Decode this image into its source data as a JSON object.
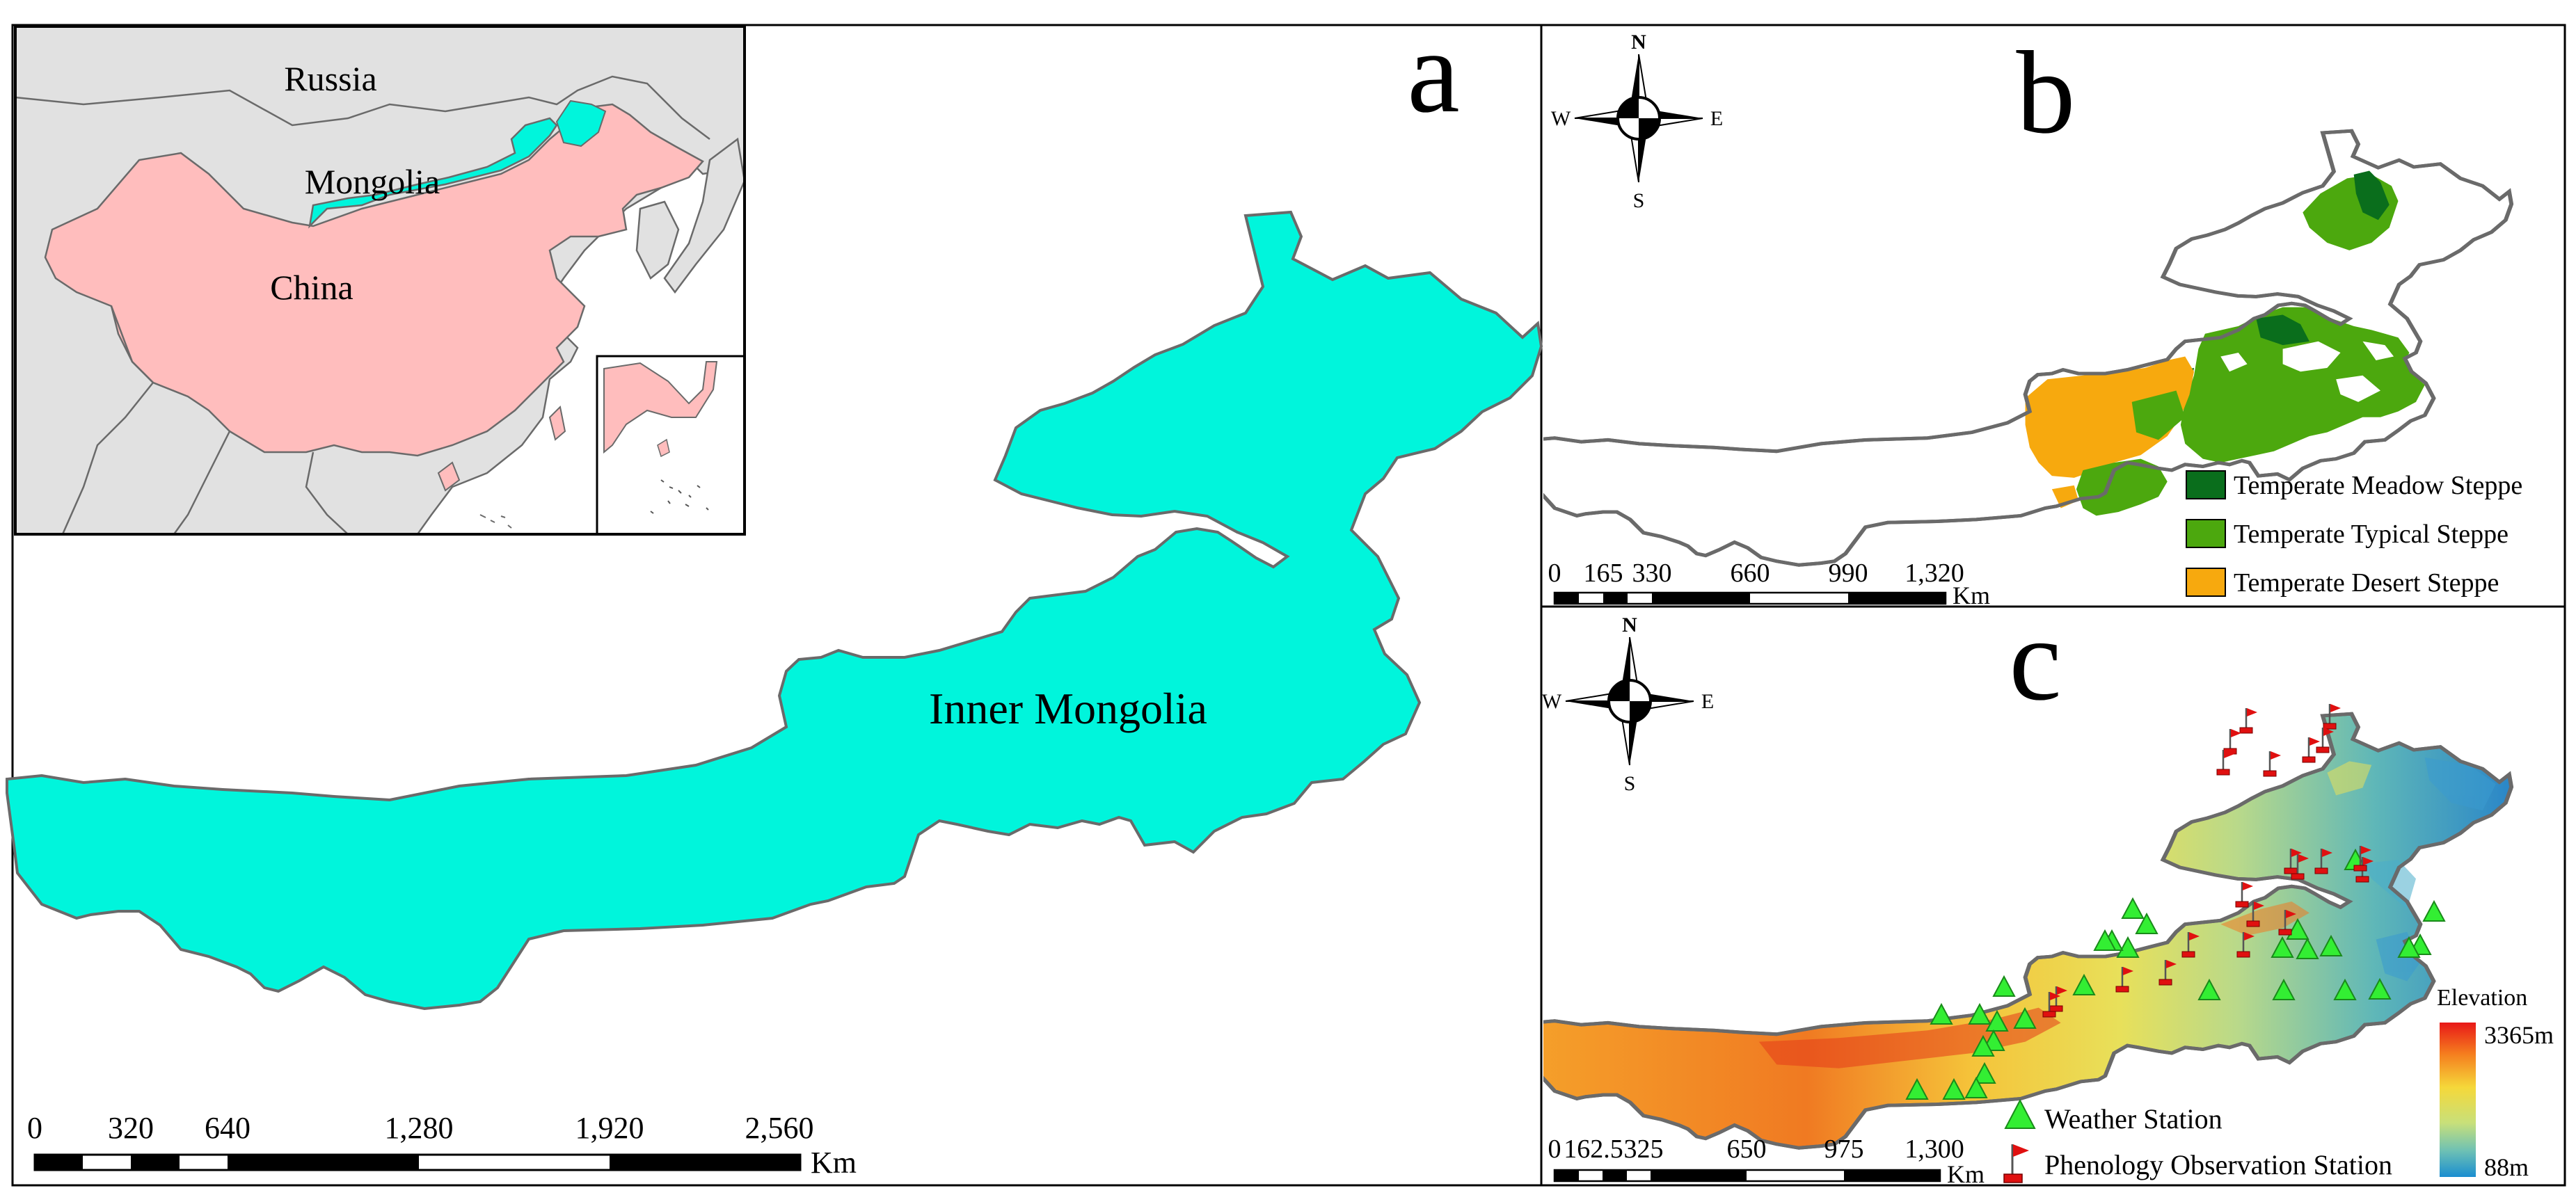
{
  "panel_a": {
    "letter": "a",
    "region_label": "Inner Mongolia",
    "inset": {
      "labels": {
        "russia": "Russia",
        "mongolia": "Mongolia",
        "china": "China"
      }
    },
    "scale_bar": {
      "ticks": [
        "0",
        "320",
        "640",
        "1,280",
        "1,920",
        "2,560"
      ],
      "unit": "Km"
    }
  },
  "panel_b": {
    "letter": "b",
    "legend": [
      {
        "label": "Temperate Meadow Steppe",
        "color": "#0a6e1c"
      },
      {
        "label": "Temperate Typical Steppe",
        "color": "#4ca80e"
      },
      {
        "label": "Temperate Desert Steppe",
        "color": "#f7a90e"
      }
    ],
    "scale_bar": {
      "ticks": [
        "0",
        "165",
        "330",
        "660",
        "990",
        "1,320"
      ],
      "unit": "Km"
    }
  },
  "panel_c": {
    "letter": "c",
    "elevation": {
      "title": "Elevation",
      "max": "3365m",
      "min": "88m"
    },
    "legend": [
      {
        "label": "Weather Station",
        "symbol": "green-triangle"
      },
      {
        "label": "Phenology Observation Station",
        "symbol": "red-flag"
      }
    ],
    "scale_bar": {
      "ticks": [
        "0",
        "162.5",
        "325",
        "650",
        "975",
        "1,300"
      ],
      "unit": "Km"
    }
  },
  "compass": {
    "n": "N",
    "s": "S",
    "e": "E",
    "w": "W"
  },
  "colors": {
    "inner_mongolia_fill": "#00f5dc",
    "china_fill": "#ffbdbd",
    "land_fill": "#e1e1e1",
    "border": "#646464",
    "frame": "#000000",
    "weather_station": "#33ee33",
    "phenology_flag": "#e01010"
  }
}
